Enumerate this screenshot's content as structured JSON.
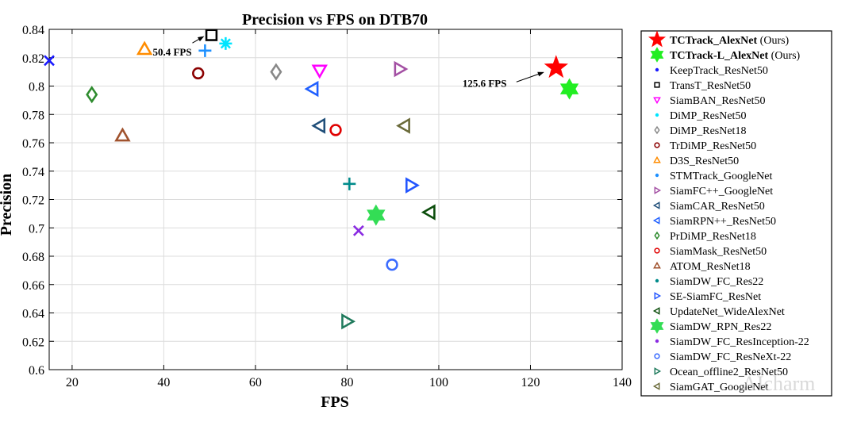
{
  "watermark": "AIcharm",
  "chart_data": {
    "type": "scatter",
    "title": "Precision vs FPS on DTB70",
    "xlabel": "FPS",
    "ylabel": "Precision",
    "xlim": [
      15,
      140
    ],
    "ylim": [
      0.6,
      0.84
    ],
    "xticks": [
      20,
      40,
      60,
      80,
      100,
      120,
      140
    ],
    "xtick_labels": [
      "20",
      "40",
      "60",
      "80",
      "100",
      "120",
      "140"
    ],
    "yticks": [
      0.6,
      0.62,
      0.64,
      0.66,
      0.68,
      0.7,
      0.72,
      0.74,
      0.76,
      0.78,
      0.8,
      0.82,
      0.84
    ],
    "ytick_labels": [
      "0.6",
      "0.62",
      "0.64",
      "0.66",
      "0.68",
      "0.7",
      "0.72",
      "0.74",
      "0.76",
      "0.78",
      "0.8",
      "0.82",
      "0.84"
    ],
    "grid": true,
    "legend_position": "outside-right",
    "annotations": [
      {
        "text": "50.4 FPS",
        "x": 50.4,
        "y": 0.836
      },
      {
        "text": "125.6 FPS",
        "x": 125.6,
        "y": 0.813
      }
    ],
    "series": [
      {
        "name": "TCTrack_AlexNet",
        "suffix": " (Ours)",
        "bold": true,
        "marker": "star5",
        "color": "#ff0000",
        "x": 125.6,
        "y": 0.813
      },
      {
        "name": "TCTrack-L_AlexNet",
        "suffix": " (Ours)",
        "bold": true,
        "marker": "hexagram",
        "color": "#22ee22",
        "x": 128.5,
        "y": 0.798
      },
      {
        "name": "KeepTrack_ResNet50",
        "marker": "x",
        "color": "#1a1aff",
        "x": 15,
        "y": 0.818
      },
      {
        "name": "TransT_ResNet50",
        "marker": "square",
        "color": "#000000",
        "x": 50.4,
        "y": 0.836
      },
      {
        "name": "SiamBAN_ResNet50",
        "marker": "triangle-down",
        "color": "#ff00ff",
        "x": 74,
        "y": 0.811
      },
      {
        "name": "DiMP_ResNet50",
        "marker": "asterisk",
        "color": "#00e5ff",
        "x": 53.5,
        "y": 0.83
      },
      {
        "name": "DiMP_ResNet18",
        "marker": "diamond",
        "color": "#888888",
        "x": 64.5,
        "y": 0.81
      },
      {
        "name": "TrDiMP_ResNet50",
        "marker": "circle",
        "color": "#8b0000",
        "x": 47.5,
        "y": 0.809
      },
      {
        "name": "D3S_ResNet50",
        "marker": "triangle-up",
        "color": "#ff8c00",
        "x": 35.8,
        "y": 0.826
      },
      {
        "name": "STMTrack_GoogleNet",
        "marker": "plus",
        "color": "#1e90ff",
        "x": 49,
        "y": 0.825
      },
      {
        "name": "SiamFC++_GoogleNet",
        "marker": "triangle-right",
        "color": "#a34fa3",
        "x": 91.5,
        "y": 0.812
      },
      {
        "name": "SiamCAR_ResNet50",
        "marker": "triangle-left",
        "color": "#1f4e79",
        "x": 74,
        "y": 0.772
      },
      {
        "name": "SiamRPN++_ResNet50",
        "marker": "triangle-left",
        "color": "#1f5fff",
        "x": 72.5,
        "y": 0.798
      },
      {
        "name": "PrDiMP_ResNet18",
        "marker": "diamond",
        "color": "#2e8b2e",
        "x": 24.3,
        "y": 0.794
      },
      {
        "name": "SiamMask_ResNet50",
        "marker": "circle",
        "color": "#e00000",
        "x": 77.5,
        "y": 0.769
      },
      {
        "name": "ATOM_ResNet18",
        "marker": "triangle-up",
        "color": "#a0522d",
        "x": 31,
        "y": 0.765
      },
      {
        "name": "SiamDW_FC_Res22",
        "marker": "plus",
        "color": "#008b8b",
        "x": 80.5,
        "y": 0.731
      },
      {
        "name": "SE-SiamFC_ResNet",
        "marker": "triangle-right",
        "color": "#2255ff",
        "x": 94,
        "y": 0.73
      },
      {
        "name": "UpdateNet_WideAlexNet",
        "marker": "triangle-left",
        "color": "#0b4d0b",
        "x": 98,
        "y": 0.711
      },
      {
        "name": "SiamDW_RPN_Res22",
        "marker": "hexagram",
        "color": "#33dd55",
        "x": 86.3,
        "y": 0.709
      },
      {
        "name": "SiamDW_FC_ResInception-22",
        "marker": "x",
        "color": "#8a2be2",
        "x": 82.5,
        "y": 0.698
      },
      {
        "name": "SiamDW_FC_ResNeXt-22",
        "marker": "circle",
        "color": "#3b6cff",
        "x": 89.8,
        "y": 0.674
      },
      {
        "name": "Ocean_offline2_ResNet50",
        "marker": "triangle-right",
        "color": "#1f7a5c",
        "x": 80,
        "y": 0.634
      },
      {
        "name": "SiamGAT_GoogleNet",
        "marker": "triangle-left",
        "color": "#6b6b3a",
        "x": 92.5,
        "y": 0.772
      }
    ]
  }
}
